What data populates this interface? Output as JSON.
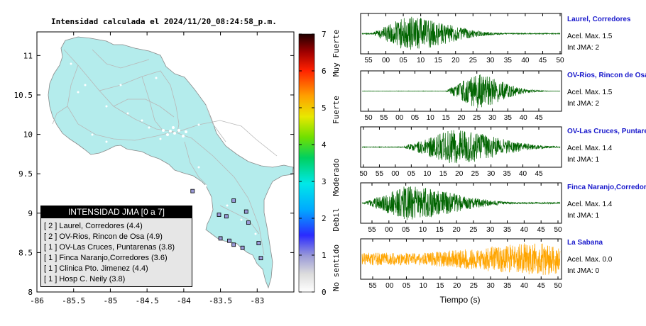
{
  "map": {
    "title": "Intensidad calculada el 2024/11/20_08:24:58_p.m.",
    "x_ticks": [
      "-86",
      "-85.5",
      "-85",
      "-84.5",
      "-84",
      "-83.5",
      "-83"
    ],
    "y_ticks": [
      "11",
      "10.5",
      "10",
      "9.5",
      "9",
      "8.5",
      "8"
    ],
    "xlim": [
      -86,
      -82.5
    ],
    "ylim": [
      8,
      11.3
    ],
    "land_color": "#b4ecec",
    "markers": [
      {
        "lon": -83.88,
        "lat": 9.28
      },
      {
        "lon": -83.32,
        "lat": 9.16
      },
      {
        "lon": -83.52,
        "lat": 8.98
      },
      {
        "lon": -83.42,
        "lat": 8.96
      },
      {
        "lon": -83.15,
        "lat": 9.02
      },
      {
        "lon": -83.12,
        "lat": 8.88
      },
      {
        "lon": -82.98,
        "lat": 8.62
      },
      {
        "lon": -83.2,
        "lat": 8.56
      },
      {
        "lon": -83.32,
        "lat": 8.6
      },
      {
        "lon": -83.5,
        "lat": 8.68
      },
      {
        "lon": -83.38,
        "lat": 8.65
      },
      {
        "lon": -82.95,
        "lat": 8.43
      }
    ]
  },
  "legend": {
    "title": "INTENSIDAD JMA [0 a 7]",
    "items": [
      "[ 2 ]  Laurel, Corredores (4.4)",
      "[ 2 ]  OV-Rios, Rincon de Osa (4.9)",
      "[ 1 ]  OV-Las Cruces, Puntarenas (3.8)",
      "[ 1 ]  Finca Naranjo,Corredores (3.6)",
      "[ 1 ]  Clinica Pto. Jimenez (4.4)",
      "[ 1 ]  Hosp C. Neily (3.8)"
    ]
  },
  "colorbar": {
    "ticks": [
      "7",
      "6",
      "5",
      "4",
      "3",
      "2",
      "1",
      "0"
    ],
    "labels": [
      "Muy Fuerte",
      "Fuerte",
      "Moderado",
      "Debil",
      "No sentido"
    ],
    "range": [
      0,
      7
    ]
  },
  "waveforms": {
    "xlabel": "Tiempo (s)",
    "panels": [
      {
        "name": "Laurel, Corredores",
        "accel": "Acel. Max. 1.5",
        "jma": "Int JMA: 2",
        "ticks": [
          "55",
          "00",
          "05",
          "10",
          "15",
          "20",
          "25",
          "30",
          "35",
          "40",
          "45",
          "50"
        ],
        "color": "#006400",
        "envelope": {
          "onset": 0.04,
          "peak": 0.22,
          "width": 0.28,
          "amp": 0.95,
          "noise": 0.03
        }
      },
      {
        "name": "OV-Rios, Rincon de Osa",
        "accel": "Acel. Max. 1.5",
        "jma": "Int JMA: 2",
        "ticks": [
          "50",
          "55",
          "00",
          "05",
          "10",
          "15",
          "20",
          "25",
          "30",
          "35",
          "40",
          "45"
        ],
        "color": "#006400",
        "envelope": {
          "onset": 0.42,
          "peak": 0.57,
          "width": 0.18,
          "amp": 0.95,
          "noise": 0.01
        }
      },
      {
        "name": "OV-Las Cruces, Puntarenas",
        "accel": "Acel. Max. 1.4",
        "jma": "Int JMA: 1",
        "ticks": [
          "50",
          "55",
          "00",
          "05",
          "10",
          "15",
          "20",
          "25",
          "30",
          "35",
          "40",
          "45"
        ],
        "color": "#006400",
        "envelope": {
          "onset": 0.2,
          "peak": 0.45,
          "width": 0.3,
          "amp": 0.95,
          "noise": 0.02
        }
      },
      {
        "name": "Finca Naranjo,Corredores",
        "accel": "Acel. Max. 1.4",
        "jma": "Int JMA: 1",
        "ticks": [
          "55",
          "00",
          "05",
          "10",
          "15",
          "20",
          "25",
          "30",
          "35",
          "40",
          "45",
          "50"
        ],
        "color": "#006400",
        "envelope": {
          "onset": 0.0,
          "peak": 0.22,
          "width": 0.32,
          "amp": 0.95,
          "noise": 0.04
        }
      },
      {
        "name": "La Sabana",
        "accel": "Acel. Max. 0.0",
        "jma": "Int JMA: 0",
        "ticks": [
          "55",
          "00",
          "05",
          "10",
          "15",
          "20",
          "25",
          "30",
          "35",
          "40",
          "45",
          "50"
        ],
        "color": "#ffa500",
        "envelope": {
          "onset": 0.0,
          "peak": 0.85,
          "width": 0.6,
          "amp": 0.9,
          "noise": 0.35
        }
      }
    ]
  }
}
